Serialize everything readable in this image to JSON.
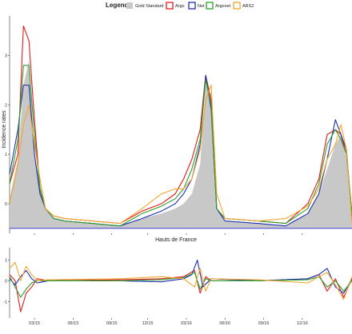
{
  "legend": {
    "title": "Legend",
    "entries": [
      {
        "name": "Gold Standard",
        "color": "#c8c8c8",
        "kind": "fill"
      },
      {
        "name": "Argo",
        "color": "#e41a1c",
        "kind": "line"
      },
      {
        "name": "Net",
        "color": "#1f2fb4",
        "kind": "line"
      },
      {
        "name": "Argonet",
        "color": "#2ca02c",
        "kind": "line"
      },
      {
        "name": "ARS2",
        "color": "#f0a830",
        "kind": "line"
      }
    ]
  },
  "chart_data": [
    {
      "type": "line",
      "panel": "main",
      "ylabel": "Incidence rates",
      "ylim": [
        -0.6,
        3.8
      ],
      "yticks": [
        0,
        1,
        2,
        3
      ],
      "baseline": -0.5,
      "x_tick_labels": [
        "03/15",
        "06/15",
        "09/15",
        "12/15",
        "03/16",
        "06/16",
        "09/16",
        "12/16"
      ],
      "legend_position": "top",
      "grid": false,
      "series": [
        {
          "name": "Gold Standard",
          "keys": [
            [
              0,
              0.1
            ],
            [
              3,
              0.9
            ],
            [
              5,
              2.4
            ],
            [
              7,
              2.9
            ],
            [
              9,
              1.0
            ],
            [
              11,
              0.4
            ],
            [
              13,
              -0.1
            ],
            [
              16,
              -0.3
            ],
            [
              20,
              -0.35
            ],
            [
              30,
              -0.4
            ],
            [
              40,
              -0.45
            ],
            [
              48,
              -0.3
            ],
            [
              55,
              -0.2
            ],
            [
              60,
              -0.1
            ],
            [
              63,
              0.0
            ],
            [
              66,
              0.2
            ],
            [
              69,
              0.8
            ],
            [
              71,
              2.4
            ],
            [
              73,
              2.2
            ],
            [
              75,
              -0.1
            ],
            [
              78,
              -0.35
            ],
            [
              90,
              -0.4
            ],
            [
              100,
              -0.45
            ],
            [
              108,
              -0.2
            ],
            [
              112,
              0.2
            ],
            [
              115,
              0.7
            ],
            [
              118,
              1.2
            ],
            [
              120,
              1.4
            ],
            [
              122,
              0.9
            ],
            [
              124,
              -0.3
            ]
          ]
        },
        {
          "name": "Argo",
          "keys": [
            [
              0,
              0.4
            ],
            [
              3,
              1.0
            ],
            [
              5,
              3.6
            ],
            [
              7,
              3.3
            ],
            [
              9,
              1.7
            ],
            [
              11,
              0.3
            ],
            [
              13,
              -0.1
            ],
            [
              16,
              -0.25
            ],
            [
              20,
              -0.3
            ],
            [
              30,
              -0.35
            ],
            [
              40,
              -0.4
            ],
            [
              48,
              -0.15
            ],
            [
              55,
              0.0
            ],
            [
              60,
              0.2
            ],
            [
              63,
              0.5
            ],
            [
              66,
              0.9
            ],
            [
              69,
              1.5
            ],
            [
              71,
              2.6
            ],
            [
              73,
              2.1
            ],
            [
              75,
              -0.1
            ],
            [
              78,
              -0.3
            ],
            [
              90,
              -0.35
            ],
            [
              100,
              -0.4
            ],
            [
              108,
              0.0
            ],
            [
              112,
              0.5
            ],
            [
              115,
              1.4
            ],
            [
              118,
              1.5
            ],
            [
              120,
              1.4
            ],
            [
              122,
              1.0
            ],
            [
              124,
              -0.2
            ]
          ]
        },
        {
          "name": "Net",
          "keys": [
            [
              0,
              0.6
            ],
            [
              3,
              1.5
            ],
            [
              5,
              2.4
            ],
            [
              7,
              2.4
            ],
            [
              9,
              1.0
            ],
            [
              11,
              0.2
            ],
            [
              13,
              -0.1
            ],
            [
              16,
              -0.3
            ],
            [
              20,
              -0.35
            ],
            [
              30,
              -0.4
            ],
            [
              40,
              -0.45
            ],
            [
              48,
              -0.3
            ],
            [
              55,
              -0.15
            ],
            [
              60,
              0.0
            ],
            [
              63,
              0.2
            ],
            [
              66,
              0.5
            ],
            [
              69,
              1.2
            ],
            [
              71,
              2.6
            ],
            [
              73,
              1.9
            ],
            [
              75,
              -0.1
            ],
            [
              78,
              -0.35
            ],
            [
              90,
              -0.4
            ],
            [
              100,
              -0.45
            ],
            [
              108,
              -0.2
            ],
            [
              112,
              0.2
            ],
            [
              115,
              0.9
            ],
            [
              118,
              1.7
            ],
            [
              120,
              1.4
            ],
            [
              122,
              1.1
            ],
            [
              124,
              -0.3
            ]
          ]
        },
        {
          "name": "Argonet",
          "keys": [
            [
              0,
              0.4
            ],
            [
              3,
              1.3
            ],
            [
              5,
              2.8
            ],
            [
              7,
              2.8
            ],
            [
              9,
              1.4
            ],
            [
              11,
              0.3
            ],
            [
              13,
              -0.1
            ],
            [
              16,
              -0.3
            ],
            [
              20,
              -0.35
            ],
            [
              30,
              -0.4
            ],
            [
              40,
              -0.45
            ],
            [
              48,
              -0.2
            ],
            [
              55,
              -0.05
            ],
            [
              60,
              0.1
            ],
            [
              63,
              0.3
            ],
            [
              66,
              0.7
            ],
            [
              69,
              1.3
            ],
            [
              71,
              2.5
            ],
            [
              73,
              2.0
            ],
            [
              75,
              -0.1
            ],
            [
              78,
              -0.3
            ],
            [
              90,
              -0.35
            ],
            [
              100,
              -0.4
            ],
            [
              108,
              -0.1
            ],
            [
              112,
              0.4
            ],
            [
              115,
              1.2
            ],
            [
              118,
              1.5
            ],
            [
              120,
              1.3
            ],
            [
              122,
              1.0
            ],
            [
              124,
              -0.2
            ]
          ]
        },
        {
          "name": "ARS2",
          "keys": [
            [
              0,
              0.0
            ],
            [
              3,
              0.8
            ],
            [
              5,
              1.6
            ],
            [
              7,
              2.0
            ],
            [
              9,
              1.2
            ],
            [
              11,
              0.5
            ],
            [
              13,
              -0.1
            ],
            [
              16,
              -0.25
            ],
            [
              20,
              -0.3
            ],
            [
              30,
              -0.35
            ],
            [
              40,
              -0.4
            ],
            [
              48,
              -0.1
            ],
            [
              55,
              0.2
            ],
            [
              60,
              0.3
            ],
            [
              63,
              0.3
            ],
            [
              66,
              0.5
            ],
            [
              69,
              1.1
            ],
            [
              71,
              2.1
            ],
            [
              73,
              2.4
            ],
            [
              75,
              0.2
            ],
            [
              78,
              -0.3
            ],
            [
              90,
              -0.35
            ],
            [
              100,
              -0.3
            ],
            [
              108,
              -0.05
            ],
            [
              112,
              0.3
            ],
            [
              115,
              0.9
            ],
            [
              118,
              1.2
            ],
            [
              120,
              1.6
            ],
            [
              122,
              1.1
            ],
            [
              124,
              -0.4
            ]
          ]
        }
      ]
    },
    {
      "type": "line",
      "panel": "residuals",
      "xlabel": "Hauts de France",
      "ylim": [
        -1.8,
        1.6
      ],
      "yticks": [
        -1,
        0,
        1
      ],
      "x_tick_labels": [
        "03/15",
        "06/15",
        "09/15",
        "12/15",
        "03/16",
        "06/16",
        "09/16",
        "12/16"
      ],
      "series": [
        {
          "name": "Argo",
          "keys": [
            [
              0,
              0.3
            ],
            [
              2,
              0.0
            ],
            [
              4,
              -1.5
            ],
            [
              6,
              -0.6
            ],
            [
              8,
              -0.3
            ],
            [
              10,
              0.1
            ],
            [
              14,
              0.0
            ],
            [
              40,
              0.05
            ],
            [
              55,
              0.1
            ],
            [
              63,
              0.2
            ],
            [
              67,
              0.5
            ],
            [
              69,
              -0.6
            ],
            [
              71,
              0.2
            ],
            [
              73,
              0.0
            ],
            [
              90,
              0.0
            ],
            [
              108,
              0.1
            ],
            [
              112,
              0.3
            ],
            [
              115,
              -0.5
            ],
            [
              118,
              0.1
            ],
            [
              121,
              -0.8
            ],
            [
              124,
              0.1
            ]
          ]
        },
        {
          "name": "Net",
          "keys": [
            [
              0,
              0.1
            ],
            [
              2,
              -0.2
            ],
            [
              4,
              0.2
            ],
            [
              6,
              0.5
            ],
            [
              8,
              0.1
            ],
            [
              10,
              -0.1
            ],
            [
              14,
              0.0
            ],
            [
              40,
              0.0
            ],
            [
              55,
              -0.05
            ],
            [
              63,
              0.1
            ],
            [
              66,
              0.3
            ],
            [
              68,
              1.0
            ],
            [
              70,
              -0.3
            ],
            [
              73,
              0.1
            ],
            [
              90,
              0.0
            ],
            [
              108,
              0.1
            ],
            [
              112,
              0.3
            ],
            [
              115,
              0.6
            ],
            [
              118,
              -0.3
            ],
            [
              121,
              -0.6
            ],
            [
              124,
              0.1
            ]
          ]
        },
        {
          "name": "Argonet",
          "keys": [
            [
              0,
              0.2
            ],
            [
              2,
              -0.3
            ],
            [
              4,
              -0.8
            ],
            [
              6,
              -0.4
            ],
            [
              8,
              -0.1
            ],
            [
              10,
              0.0
            ],
            [
              14,
              0.0
            ],
            [
              40,
              0.0
            ],
            [
              55,
              0.05
            ],
            [
              63,
              0.15
            ],
            [
              67,
              0.4
            ],
            [
              69,
              -0.4
            ],
            [
              71,
              0.1
            ],
            [
              73,
              0.0
            ],
            [
              90,
              0.0
            ],
            [
              108,
              0.05
            ],
            [
              112,
              0.2
            ],
            [
              115,
              -0.3
            ],
            [
              118,
              0.0
            ],
            [
              121,
              -0.5
            ],
            [
              124,
              0.0
            ]
          ]
        },
        {
          "name": "ARS2",
          "keys": [
            [
              0,
              0.6
            ],
            [
              2,
              0.9
            ],
            [
              4,
              0.0
            ],
            [
              6,
              0.7
            ],
            [
              8,
              0.3
            ],
            [
              10,
              0.0
            ],
            [
              14,
              0.05
            ],
            [
              40,
              0.1
            ],
            [
              55,
              0.2
            ],
            [
              63,
              0.1
            ],
            [
              67,
              -0.3
            ],
            [
              69,
              0.6
            ],
            [
              71,
              -0.5
            ],
            [
              73,
              0.1
            ],
            [
              90,
              0.05
            ],
            [
              108,
              -0.1
            ],
            [
              112,
              0.2
            ],
            [
              115,
              0.4
            ],
            [
              118,
              -0.2
            ],
            [
              121,
              -0.9
            ],
            [
              124,
              0.2
            ]
          ]
        }
      ]
    }
  ]
}
